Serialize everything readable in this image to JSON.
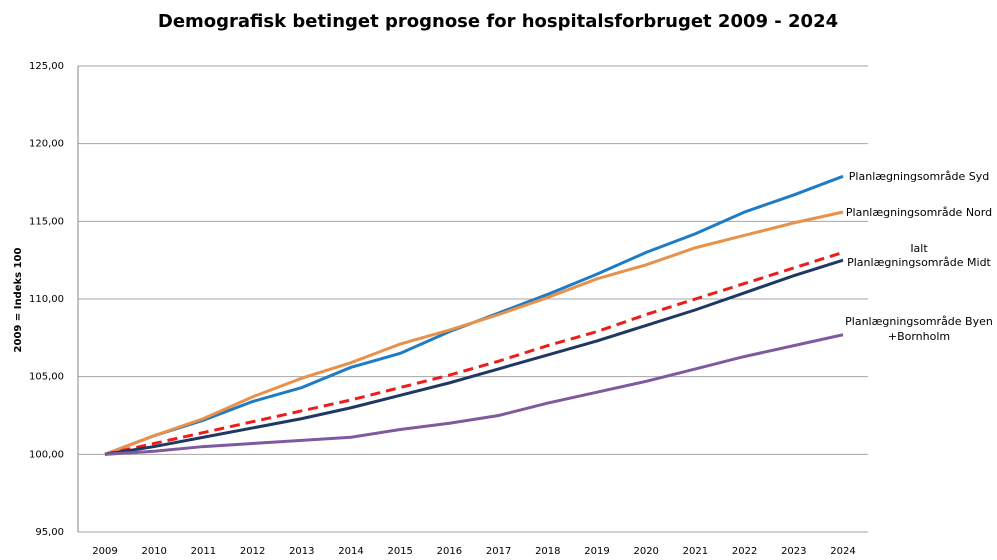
{
  "chart_data": {
    "type": "line",
    "title": "Demografisk betinget prognose for hospitalsforbruget 2009 - 2024",
    "y_label": "2009 = Indeks 100",
    "categories": [
      "2009",
      "2010",
      "2011",
      "2012",
      "2013",
      "2014",
      "2015",
      "2016",
      "2017",
      "2018",
      "2019",
      "2020",
      "2021",
      "2022",
      "2023",
      "2024"
    ],
    "ylim": [
      95,
      125
    ],
    "yticks": [
      {
        "value": 95,
        "label": "95,00"
      },
      {
        "value": 100,
        "label": "100,00"
      },
      {
        "value": 105,
        "label": "105,00"
      },
      {
        "value": 110,
        "label": "110,00"
      },
      {
        "value": 115,
        "label": "115,00"
      },
      {
        "value": 120,
        "label": "120,00"
      },
      {
        "value": 125,
        "label": "125,00"
      }
    ],
    "grid": true,
    "series": [
      {
        "name": "Planlægningsområde Syd",
        "color": "#1f7bc4",
        "dashed": false,
        "values": [
          100,
          101.2,
          102.2,
          103.4,
          104.3,
          105.6,
          106.5,
          107.9,
          109.1,
          110.3,
          111.6,
          113.0,
          114.2,
          115.6,
          116.7,
          117.9
        ]
      },
      {
        "name": "Planlægningsområde Nord",
        "color": "#e8914a",
        "dashed": false,
        "values": [
          100,
          101.2,
          102.3,
          103.7,
          104.9,
          105.9,
          107.1,
          108.0,
          109.0,
          110.1,
          111.3,
          112.2,
          113.3,
          114.1,
          114.9,
          115.6
        ]
      },
      {
        "name": "Ialt",
        "color": "#ee1c1c",
        "dashed": true,
        "values": [
          100,
          100.7,
          101.4,
          102.1,
          102.8,
          103.5,
          104.3,
          105.1,
          106.0,
          107.0,
          107.9,
          109.0,
          110.0,
          111.0,
          112.0,
          113.0
        ]
      },
      {
        "name": "Planlægningsområde Midt",
        "color": "#1f3864",
        "dashed": false,
        "values": [
          100,
          100.5,
          101.1,
          101.7,
          102.3,
          103.0,
          103.8,
          104.6,
          105.5,
          106.4,
          107.3,
          108.3,
          109.3,
          110.4,
          111.5,
          112.5
        ]
      },
      {
        "name": "Planlægningsområde Byen +Bornholm",
        "color": "#7f5a9e",
        "dashed": false,
        "values": [
          100,
          100.2,
          100.5,
          100.7,
          100.9,
          101.1,
          101.6,
          102.0,
          102.5,
          103.3,
          104.0,
          104.7,
          105.5,
          106.3,
          107.0,
          107.7
        ]
      }
    ]
  }
}
